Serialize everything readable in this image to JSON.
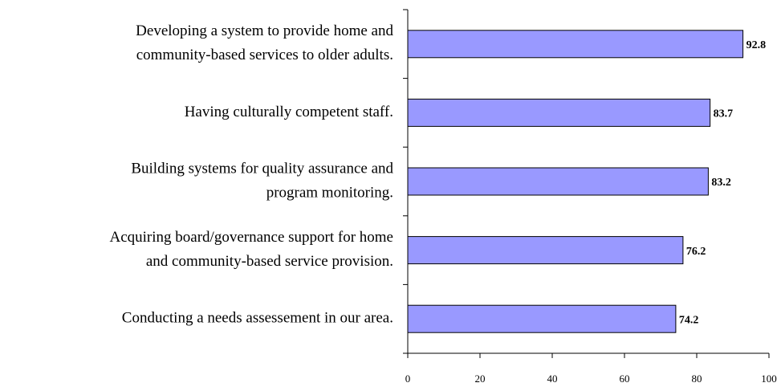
{
  "chart_data": {
    "type": "barh",
    "categories": [
      [
        "Developing a system to provide home and",
        "community-based services to older adults."
      ],
      [
        "Having culturally competent staff."
      ],
      [
        "Building systems for quality assurance and",
        "program monitoring."
      ],
      [
        "Acquiring board/governance support for home",
        "and community-based service provision."
      ],
      [
        "Conducting a needs assessement in our area."
      ]
    ],
    "values": [
      92.8,
      83.7,
      83.2,
      76.2,
      74.2
    ],
    "color": "#9999ff",
    "xlim": [
      0,
      100
    ],
    "xticks": [
      0,
      20,
      40,
      60,
      80,
      100
    ]
  }
}
